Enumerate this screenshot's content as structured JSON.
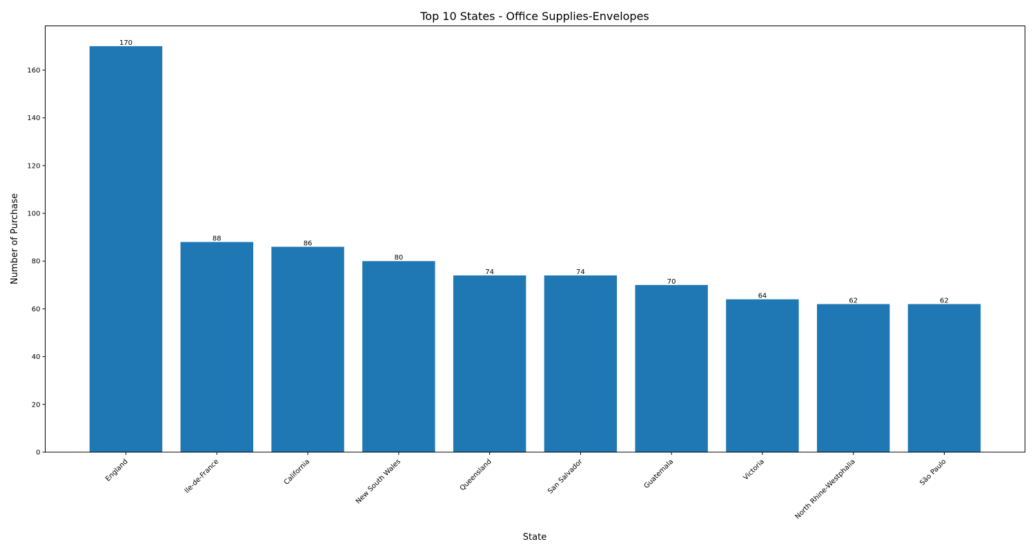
{
  "chart_data": {
    "type": "bar",
    "title": "Top 10 States - Office Supplies-Envelopes",
    "xlabel": "State",
    "ylabel": "Number of Purchase",
    "categories": [
      "England",
      "Ile-de-France",
      "California",
      "New South Wales",
      "Queensland",
      "San Salvador",
      "Guatemala",
      "Victoria",
      "North Rhine-Westphalia",
      "São Paulo"
    ],
    "values": [
      170,
      88,
      86,
      80,
      74,
      74,
      70,
      64,
      62,
      62
    ],
    "ylim": [
      0,
      178.5
    ],
    "yticks": [
      0,
      20,
      40,
      60,
      80,
      100,
      120,
      140,
      160
    ],
    "bar_color": "#1f77b4",
    "grid": false,
    "legend": "none",
    "data_labels": true
  }
}
